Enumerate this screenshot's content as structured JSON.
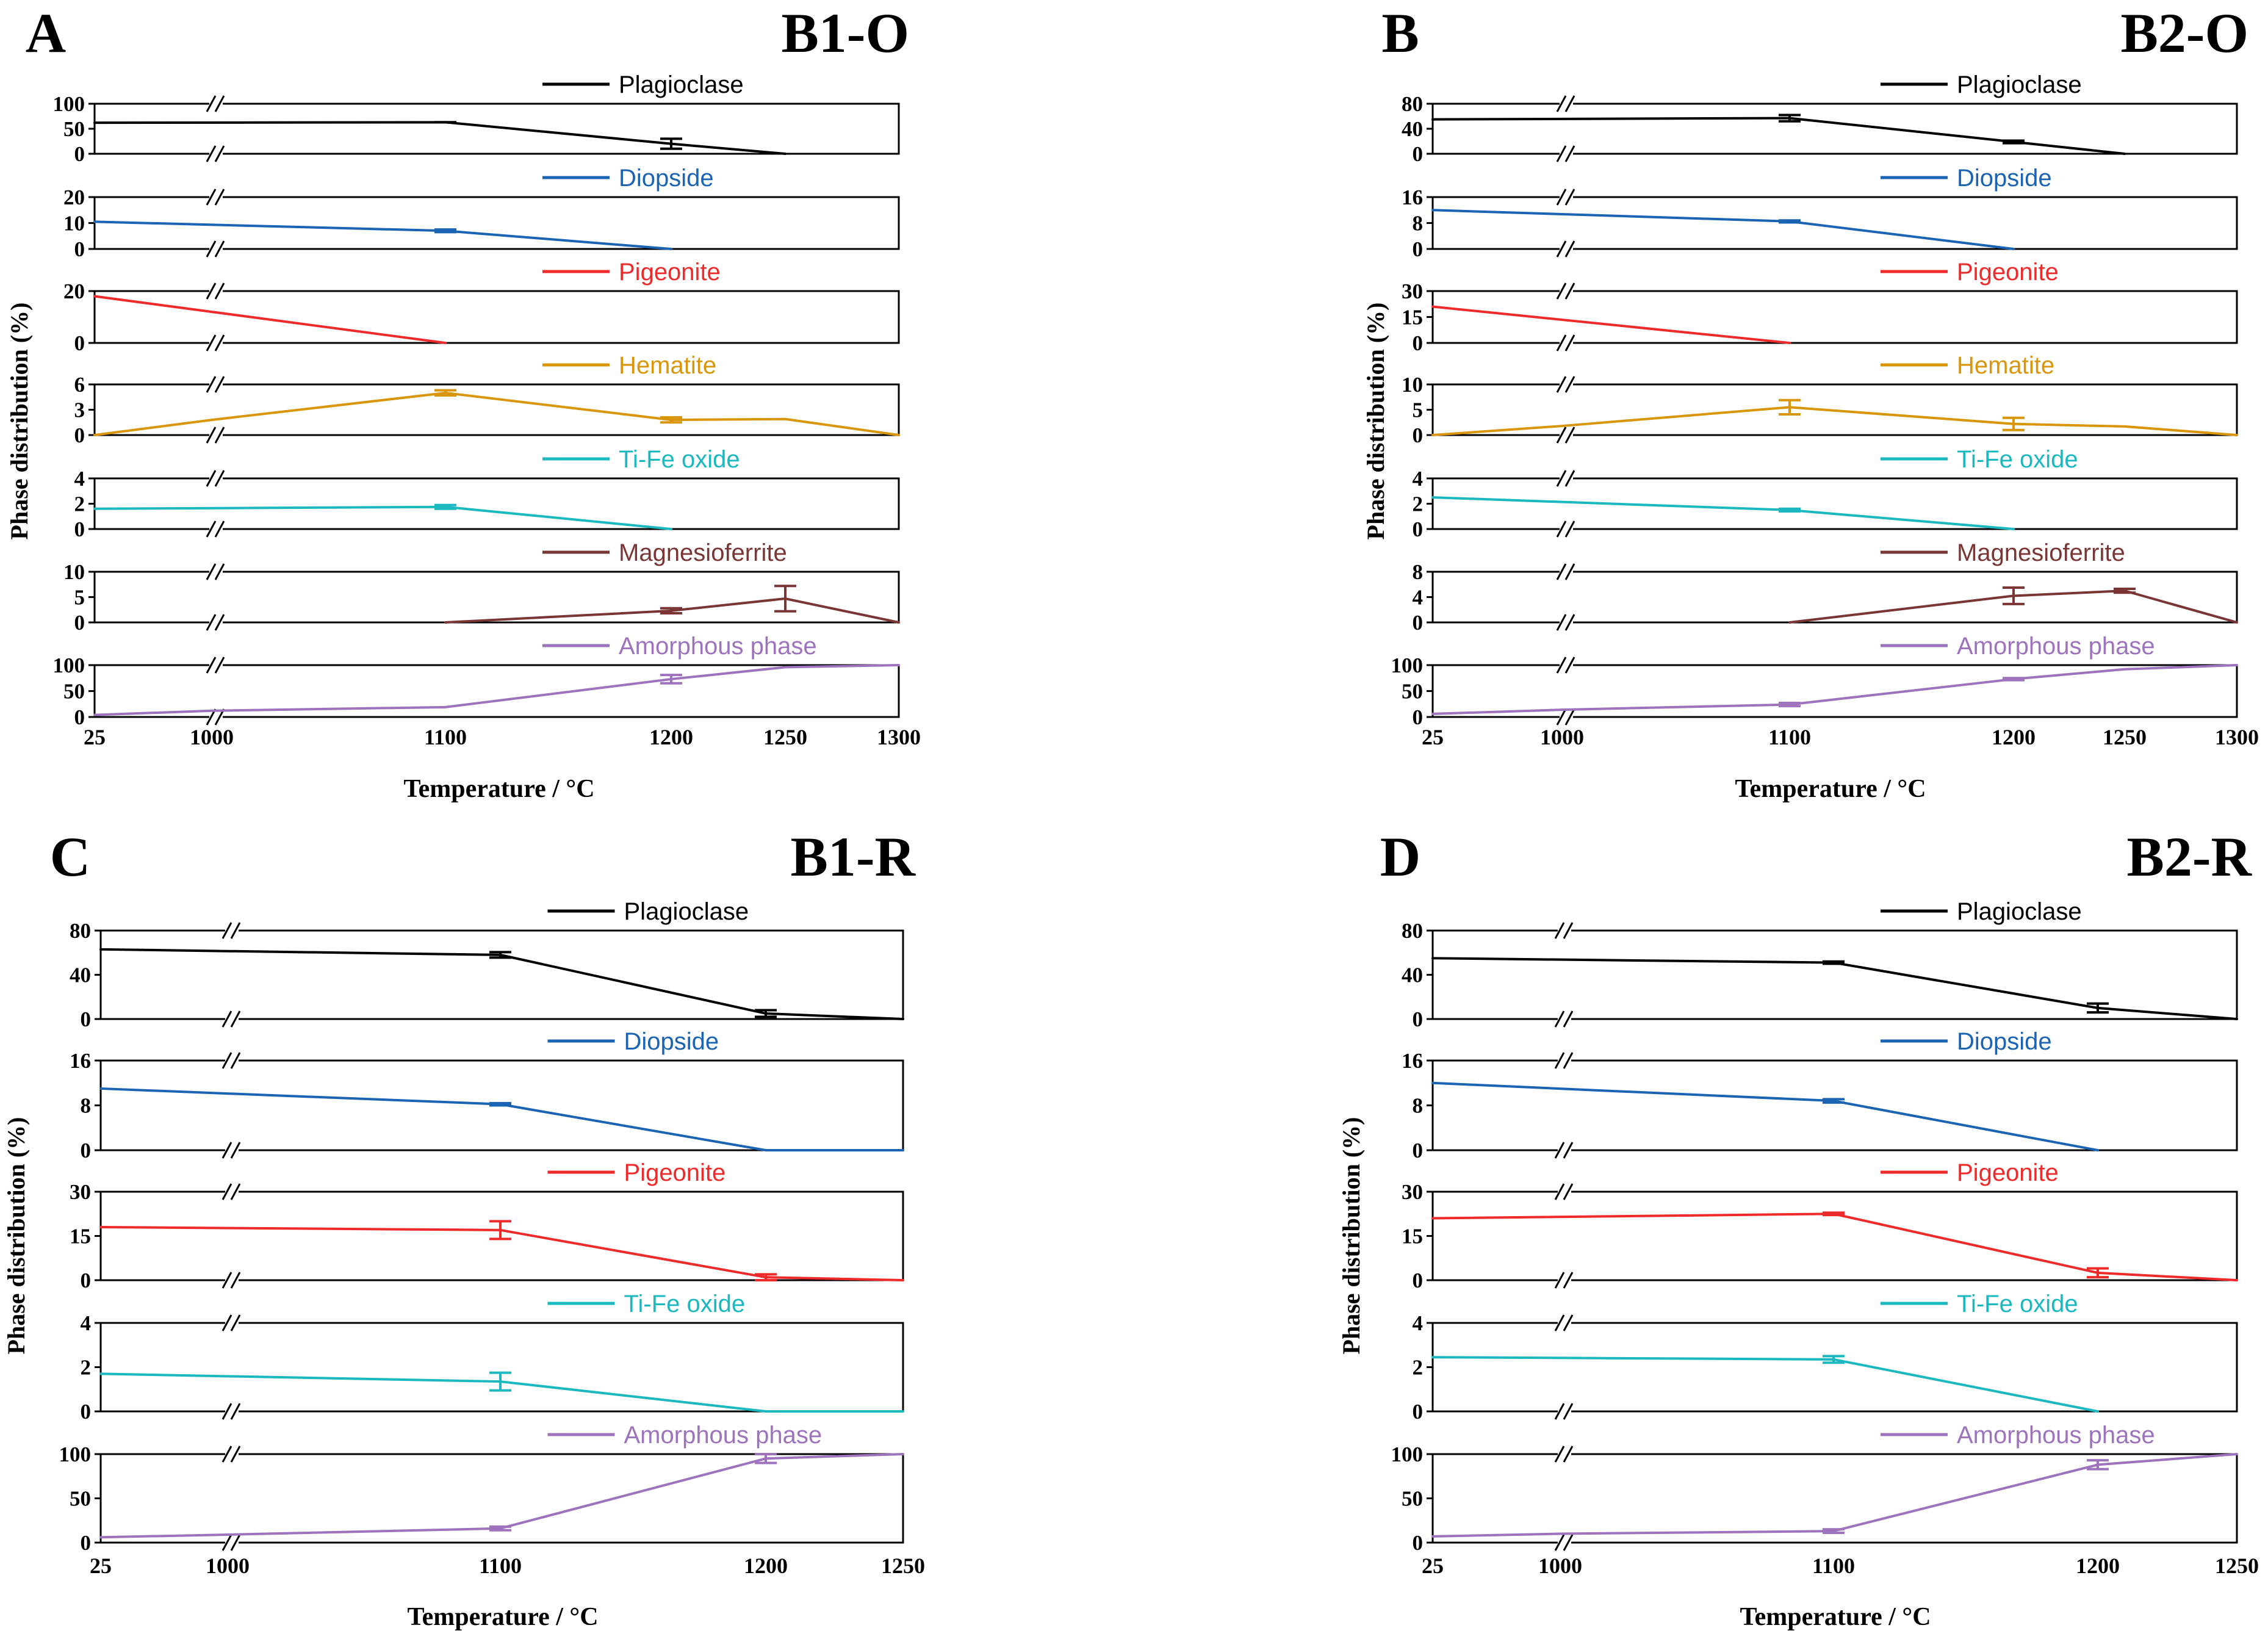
{
  "figure": {
    "xlabel": "Temperature / °C"
  },
  "chart_data": [
    {
      "type": "line",
      "panel_letter": "A",
      "title": "B1-O",
      "ylabel": "Phase distribution (%)",
      "xlabel": "Temperature / °C",
      "x_categories": [
        "25",
        "1000",
        "1100",
        "1200",
        "1250",
        "1300"
      ],
      "axis_break": "between 25 and 1000 °C",
      "series": [
        {
          "name": "Plagioclase",
          "color": "#000000",
          "yticks": [
            0,
            50,
            100
          ],
          "ylim": [
            0,
            100
          ],
          "x": [
            25,
            1100,
            1200,
            1250
          ],
          "values": [
            62,
            63,
            20,
            0
          ],
          "errors": [
            null,
            0,
            10,
            null
          ]
        },
        {
          "name": "Diopside",
          "color": "#1b64b4",
          "yticks": [
            0,
            10,
            20
          ],
          "ylim": [
            0,
            20
          ],
          "x": [
            25,
            1100,
            1200
          ],
          "values": [
            10.5,
            7,
            0
          ],
          "errors": [
            null,
            0.5,
            null
          ]
        },
        {
          "name": "Pigeonite",
          "color": "#ee2a2a",
          "yticks": [
            0,
            20
          ],
          "ylim": [
            0,
            20
          ],
          "x": [
            25,
            1100
          ],
          "values": [
            18,
            0
          ],
          "errors": [
            null,
            null
          ]
        },
        {
          "name": "Hematite",
          "color": "#d9960b",
          "yticks": [
            0,
            3,
            6
          ],
          "ylim": [
            0,
            6
          ],
          "x": [
            25,
            1000,
            1100,
            1200,
            1250,
            1300
          ],
          "values": [
            0,
            1.8,
            5,
            1.8,
            1.9,
            0
          ],
          "errors": [
            null,
            null,
            0.3,
            0.3,
            null,
            null
          ]
        },
        {
          "name": "Ti-Fe oxide",
          "color": "#1bb8c0",
          "yticks": [
            0,
            2,
            4
          ],
          "ylim": [
            0,
            4
          ],
          "x": [
            25,
            1100,
            1200
          ],
          "values": [
            1.6,
            1.75,
            0
          ],
          "errors": [
            null,
            0.15,
            null
          ]
        },
        {
          "name": "Magnesioferrite",
          "color": "#7a3535",
          "yticks": [
            0,
            5,
            10
          ],
          "ylim": [
            0,
            10
          ],
          "x": [
            1100,
            1200,
            1250,
            1300
          ],
          "values": [
            0,
            2.3,
            4.7,
            0
          ],
          "errors": [
            null,
            0.5,
            2.5,
            null
          ]
        },
        {
          "name": "Amorphous phase",
          "color": "#9e73bd",
          "yticks": [
            0,
            50,
            100
          ],
          "ylim": [
            0,
            100
          ],
          "x": [
            25,
            1000,
            1100,
            1200,
            1250,
            1300
          ],
          "values": [
            4,
            12,
            19,
            73,
            96,
            100
          ],
          "errors": [
            null,
            null,
            null,
            8,
            null,
            null
          ]
        }
      ]
    },
    {
      "type": "line",
      "panel_letter": "B",
      "title": "B2-O",
      "ylabel": "Phase distribution (%)",
      "xlabel": "Temperature / °C",
      "x_categories": [
        "25",
        "1000",
        "1100",
        "1200",
        "1250",
        "1300"
      ],
      "axis_break": "between 25 and 1000 °C",
      "series": [
        {
          "name": "Plagioclase",
          "color": "#000000",
          "yticks": [
            0,
            40,
            80
          ],
          "ylim": [
            0,
            80
          ],
          "x": [
            25,
            1100,
            1200,
            1250
          ],
          "values": [
            55,
            57,
            19,
            0
          ],
          "errors": [
            null,
            5,
            2,
            null
          ]
        },
        {
          "name": "Diopside",
          "color": "#1b64b4",
          "yticks": [
            0,
            8,
            16
          ],
          "ylim": [
            0,
            16
          ],
          "x": [
            25,
            1100,
            1200
          ],
          "values": [
            12,
            8.5,
            0
          ],
          "errors": [
            null,
            0.3,
            null
          ]
        },
        {
          "name": "Pigeonite",
          "color": "#ee2a2a",
          "yticks": [
            0,
            15,
            30
          ],
          "ylim": [
            0,
            30
          ],
          "x": [
            25,
            1100
          ],
          "values": [
            21,
            0
          ],
          "errors": [
            null,
            null
          ]
        },
        {
          "name": "Hematite",
          "color": "#d9960b",
          "yticks": [
            0,
            5,
            10
          ],
          "ylim": [
            0,
            10
          ],
          "x": [
            25,
            1000,
            1100,
            1200,
            1250,
            1300
          ],
          "values": [
            0,
            1.8,
            5.5,
            2.2,
            1.7,
            0
          ],
          "errors": [
            null,
            null,
            1.4,
            1.2,
            null,
            null
          ]
        },
        {
          "name": "Ti-Fe oxide",
          "color": "#1bb8c0",
          "yticks": [
            0,
            2,
            4
          ],
          "ylim": [
            0,
            4
          ],
          "x": [
            25,
            1100,
            1200
          ],
          "values": [
            2.5,
            1.5,
            0
          ],
          "errors": [
            null,
            0.1,
            null
          ]
        },
        {
          "name": "Magnesioferrite",
          "color": "#7a3535",
          "yticks": [
            0,
            4,
            8
          ],
          "ylim": [
            0,
            8
          ],
          "x": [
            1100,
            1200,
            1250,
            1300
          ],
          "values": [
            0,
            4.2,
            5,
            0
          ],
          "errors": [
            null,
            1.3,
            0.3,
            null
          ]
        },
        {
          "name": "Amorphous phase",
          "color": "#9e73bd",
          "yticks": [
            0,
            50,
            100
          ],
          "ylim": [
            0,
            100
          ],
          "x": [
            25,
            1000,
            1100,
            1200,
            1250,
            1300
          ],
          "values": [
            6,
            14,
            24,
            73,
            92,
            100
          ],
          "errors": [
            null,
            null,
            3,
            2,
            null,
            null
          ]
        }
      ]
    },
    {
      "type": "line",
      "panel_letter": "C",
      "title": "B1-R",
      "ylabel": "Phase distribution (%)",
      "xlabel": "Temperature / °C",
      "x_categories": [
        "25",
        "1000",
        "1100",
        "1200",
        "1250"
      ],
      "axis_break": "between 25 and 1000 °C",
      "series": [
        {
          "name": "Plagioclase",
          "color": "#000000",
          "yticks": [
            0,
            40,
            80
          ],
          "ylim": [
            0,
            80
          ],
          "x": [
            25,
            1100,
            1200,
            1250
          ],
          "values": [
            63,
            58,
            5,
            0
          ],
          "errors": [
            null,
            2.5,
            3,
            null
          ]
        },
        {
          "name": "Diopside",
          "color": "#1b64b4",
          "yticks": [
            0,
            8,
            16
          ],
          "ylim": [
            0,
            16
          ],
          "x": [
            25,
            1100,
            1200,
            1250
          ],
          "values": [
            11,
            8.2,
            0,
            0
          ],
          "errors": [
            null,
            0.2,
            null,
            null
          ]
        },
        {
          "name": "Pigeonite",
          "color": "#ee2a2a",
          "yticks": [
            0,
            15,
            30
          ],
          "ylim": [
            0,
            30
          ],
          "x": [
            25,
            1100,
            1200,
            1250
          ],
          "values": [
            18,
            17,
            1,
            0
          ],
          "errors": [
            null,
            3,
            1,
            null
          ]
        },
        {
          "name": "Ti-Fe oxide",
          "color": "#1bb8c0",
          "yticks": [
            0,
            2,
            4
          ],
          "ylim": [
            0,
            4
          ],
          "x": [
            25,
            1100,
            1200,
            1250
          ],
          "values": [
            1.7,
            1.35,
            0,
            0
          ],
          "errors": [
            null,
            0.4,
            null,
            null
          ]
        },
        {
          "name": "Amorphous phase",
          "color": "#9e73bd",
          "yticks": [
            0,
            50,
            100
          ],
          "ylim": [
            0,
            100
          ],
          "x": [
            25,
            1000,
            1100,
            1200,
            1250
          ],
          "values": [
            6,
            9,
            16,
            95,
            100
          ],
          "errors": [
            null,
            null,
            2,
            5,
            null
          ]
        }
      ]
    },
    {
      "type": "line",
      "panel_letter": "D",
      "title": "B2-R",
      "ylabel": "Phase distribution (%)",
      "xlabel": "Temperature / °C",
      "x_categories": [
        "25",
        "1000",
        "1100",
        "1200",
        "1250"
      ],
      "axis_break": "between 25 and 1000 °C",
      "series": [
        {
          "name": "Plagioclase",
          "color": "#000000",
          "yticks": [
            0,
            40,
            80
          ],
          "ylim": [
            0,
            80
          ],
          "x": [
            25,
            1100,
            1200,
            1250
          ],
          "values": [
            55,
            51,
            10,
            0
          ],
          "errors": [
            null,
            1,
            4,
            null
          ]
        },
        {
          "name": "Diopside",
          "color": "#1b64b4",
          "yticks": [
            0,
            8,
            16
          ],
          "ylim": [
            0,
            16
          ],
          "x": [
            25,
            1100,
            1200
          ],
          "values": [
            12,
            8.8,
            0
          ],
          "errors": [
            null,
            0.3,
            null
          ]
        },
        {
          "name": "Pigeonite",
          "color": "#ee2a2a",
          "yticks": [
            0,
            15,
            30
          ],
          "ylim": [
            0,
            30
          ],
          "x": [
            25,
            1100,
            1200,
            1250
          ],
          "values": [
            21,
            22.5,
            2.5,
            0
          ],
          "errors": [
            null,
            0.4,
            1.5,
            null
          ]
        },
        {
          "name": "Ti-Fe oxide",
          "color": "#1bb8c0",
          "yticks": [
            0,
            2,
            4
          ],
          "ylim": [
            0,
            4
          ],
          "x": [
            25,
            1100,
            1200
          ],
          "values": [
            2.45,
            2.35,
            0
          ],
          "errors": [
            null,
            0.15,
            null
          ]
        },
        {
          "name": "Amorphous phase",
          "color": "#9e73bd",
          "yticks": [
            0,
            50,
            100
          ],
          "ylim": [
            0,
            100
          ],
          "x": [
            25,
            1000,
            1100,
            1200,
            1250
          ],
          "values": [
            7,
            10,
            13,
            88,
            100
          ],
          "errors": [
            null,
            null,
            2,
            5,
            null
          ]
        }
      ]
    }
  ]
}
